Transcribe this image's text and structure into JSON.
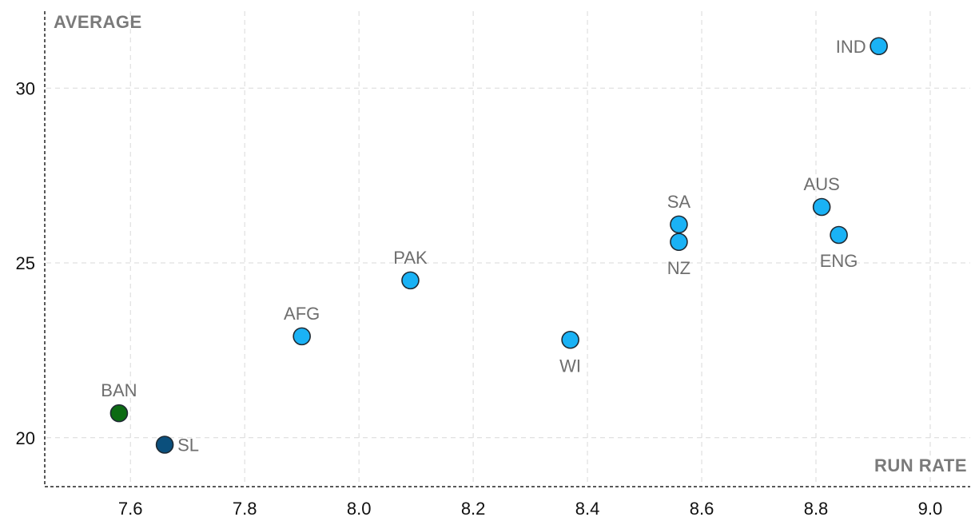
{
  "chart_data": {
    "type": "scatter",
    "title": "",
    "xlabel": "RUN RATE",
    "ylabel": "AVERAGE",
    "xlim": [
      7.45,
      9.07
    ],
    "ylim": [
      18.6,
      32.2
    ],
    "x_ticks": [
      "7.6",
      "7.8",
      "8.0",
      "8.2",
      "8.4",
      "8.6",
      "8.8",
      "9.0"
    ],
    "y_ticks": [
      "20",
      "25",
      "30"
    ],
    "grid": true,
    "colors": {
      "default": "#1ab2f5",
      "BAN": "#0c6b13",
      "SL": "#0b4f7c"
    },
    "points": [
      {
        "label": "IND",
        "x": 8.91,
        "y": 31.2,
        "label_pos": "left"
      },
      {
        "label": "AUS",
        "x": 8.81,
        "y": 26.6,
        "label_pos": "above"
      },
      {
        "label": "ENG",
        "x": 8.84,
        "y": 25.8,
        "label_pos": "below"
      },
      {
        "label": "SA",
        "x": 8.56,
        "y": 26.1,
        "label_pos": "above"
      },
      {
        "label": "NZ",
        "x": 8.56,
        "y": 25.6,
        "label_pos": "below"
      },
      {
        "label": "PAK",
        "x": 8.09,
        "y": 24.5,
        "label_pos": "above"
      },
      {
        "label": "AFG",
        "x": 7.9,
        "y": 22.9,
        "label_pos": "above"
      },
      {
        "label": "WI",
        "x": 8.37,
        "y": 22.8,
        "label_pos": "below"
      },
      {
        "label": "BAN",
        "x": 7.58,
        "y": 20.7,
        "label_pos": "above"
      },
      {
        "label": "SL",
        "x": 7.66,
        "y": 19.8,
        "label_pos": "right"
      }
    ]
  }
}
